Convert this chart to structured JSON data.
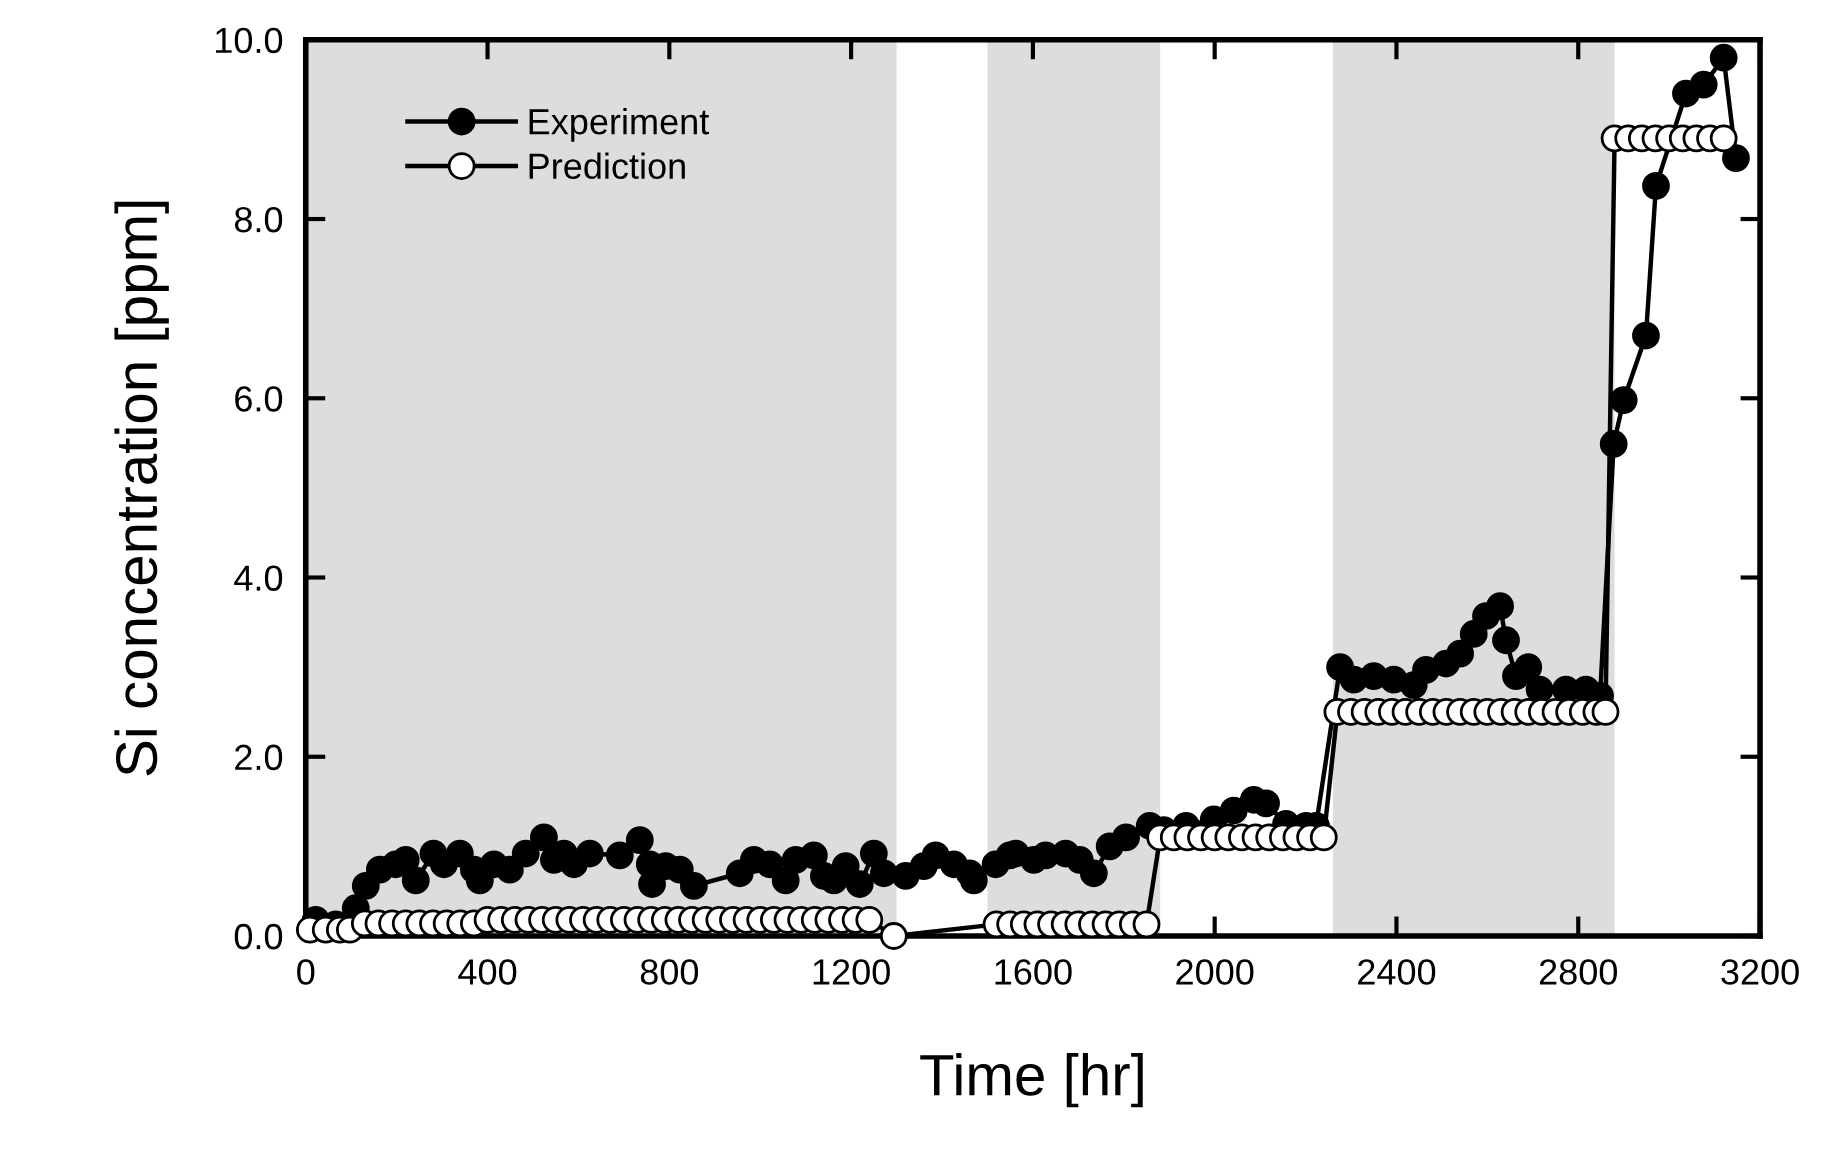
{
  "chart_data": {
    "type": "line",
    "xlabel": "Time [hr]",
    "ylabel": "Si concentration [ppm]",
    "xlim": [
      0,
      3200
    ],
    "xticks": [
      0,
      400,
      800,
      1200,
      1600,
      2000,
      2400,
      2800,
      3200
    ],
    "ylim": [
      0,
      10
    ],
    "yticks": [
      {
        "value": 0,
        "label": "0.0"
      },
      {
        "value": 2,
        "label": "2.0"
      },
      {
        "value": 4,
        "label": "4.0"
      },
      {
        "value": 6,
        "label": "6.0"
      },
      {
        "value": 8,
        "label": "8.0"
      },
      {
        "value": 10,
        "label": "10.0"
      }
    ],
    "grid": false,
    "legend": "top left",
    "marker": "circle",
    "line_style": "solid",
    "bands": [
      {
        "axis": "x",
        "from": 0,
        "to": 1300,
        "color": "#dcdddd"
      },
      {
        "axis": "x",
        "from": 1500,
        "to": 1880,
        "color": "#dcdddd"
      },
      {
        "axis": "x",
        "from": 2260,
        "to": 2880,
        "color": "#dcdddd"
      }
    ],
    "series": [
      {
        "name": "Experiment",
        "color": "#000000",
        "x": [
          22,
          66,
          110,
          132,
          163,
          198,
          220,
          242,
          281,
          304,
          339,
          370,
          383,
          414,
          449,
          484,
          524,
          546,
          568,
          590,
          625,
          691,
          735,
          757,
          762,
          792,
          823,
          854,
          955,
          986,
          1021,
          1056,
          1078,
          1118,
          1140,
          1162,
          1188,
          1219,
          1250,
          1272,
          1320,
          1360,
          1386,
          1426,
          1461,
          1470,
          1518,
          1549,
          1562,
          1602,
          1628,
          1672,
          1703,
          1734,
          1769,
          1805,
          1857,
          1888,
          1937,
          1998,
          2042,
          2086,
          2113,
          2157,
          2201,
          2223,
          2276,
          2306,
          2350,
          2394,
          2438,
          2465,
          2509,
          2540,
          2570,
          2597,
          2628,
          2641,
          2663,
          2690,
          2715,
          2773,
          2817,
          2848,
          2878,
          2900,
          2949,
          2971,
          3037,
          3076,
          3120,
          3147
        ],
        "values": [
          0.18,
          0.13,
          0.31,
          0.56,
          0.74,
          0.8,
          0.85,
          0.62,
          0.92,
          0.8,
          0.92,
          0.74,
          0.62,
          0.8,
          0.74,
          0.92,
          1.1,
          0.85,
          0.92,
          0.8,
          0.92,
          0.9,
          1.07,
          0.8,
          0.58,
          0.78,
          0.74,
          0.56,
          0.7,
          0.85,
          0.8,
          0.62,
          0.85,
          0.9,
          0.67,
          0.62,
          0.78,
          0.58,
          0.92,
          0.7,
          0.67,
          0.78,
          0.9,
          0.8,
          0.7,
          0.62,
          0.8,
          0.9,
          0.92,
          0.85,
          0.9,
          0.92,
          0.85,
          0.7,
          1.0,
          1.1,
          1.23,
          1.18,
          1.23,
          1.3,
          1.4,
          1.52,
          1.48,
          1.25,
          1.23,
          1.23,
          3.0,
          2.86,
          2.9,
          2.86,
          2.8,
          2.97,
          3.04,
          3.15,
          3.37,
          3.57,
          3.68,
          3.3,
          2.9,
          3.0,
          2.75,
          2.75,
          2.75,
          2.68,
          5.49,
          5.98,
          6.7,
          8.37,
          9.4,
          9.5,
          9.8,
          8.68
        ]
      },
      {
        "name": "Prediction",
        "color": "#ffffff",
        "x": [
          9,
          44,
          75,
          97,
          130,
          160,
          190,
          220,
          250,
          280,
          310,
          340,
          370,
          400,
          430,
          460,
          490,
          520,
          550,
          580,
          610,
          640,
          670,
          700,
          730,
          760,
          790,
          820,
          850,
          880,
          910,
          940,
          970,
          1000,
          1030,
          1060,
          1090,
          1120,
          1150,
          1180,
          1210,
          1240,
          1294,
          1520,
          1550,
          1580,
          1610,
          1640,
          1670,
          1700,
          1730,
          1760,
          1790,
          1820,
          1850,
          1880,
          1910,
          1940,
          1970,
          2000,
          2030,
          2060,
          2090,
          2120,
          2150,
          2180,
          2210,
          2240,
          2270,
          2300,
          2330,
          2360,
          2390,
          2420,
          2450,
          2480,
          2510,
          2540,
          2570,
          2600,
          2630,
          2660,
          2690,
          2720,
          2750,
          2780,
          2810,
          2840,
          2860,
          2880,
          2910,
          2940,
          2970,
          3000,
          3030,
          3060,
          3090,
          3120
        ],
        "values": [
          0.07,
          0.07,
          0.07,
          0.07,
          0.14,
          0.14,
          0.14,
          0.14,
          0.14,
          0.14,
          0.14,
          0.14,
          0.14,
          0.18,
          0.18,
          0.18,
          0.18,
          0.18,
          0.18,
          0.18,
          0.18,
          0.18,
          0.18,
          0.18,
          0.18,
          0.18,
          0.18,
          0.18,
          0.18,
          0.18,
          0.18,
          0.18,
          0.18,
          0.18,
          0.18,
          0.18,
          0.18,
          0.18,
          0.18,
          0.18,
          0.18,
          0.18,
          0.0,
          0.13,
          0.13,
          0.13,
          0.13,
          0.13,
          0.13,
          0.13,
          0.13,
          0.13,
          0.13,
          0.13,
          0.13,
          1.1,
          1.1,
          1.1,
          1.1,
          1.1,
          1.1,
          1.1,
          1.1,
          1.1,
          1.1,
          1.1,
          1.1,
          1.1,
          2.5,
          2.5,
          2.5,
          2.5,
          2.5,
          2.5,
          2.5,
          2.5,
          2.5,
          2.5,
          2.5,
          2.5,
          2.5,
          2.5,
          2.5,
          2.5,
          2.5,
          2.5,
          2.5,
          2.5,
          2.5,
          8.9,
          8.9,
          8.9,
          8.9,
          8.9,
          8.9,
          8.9,
          8.9,
          8.9
        ]
      }
    ]
  }
}
